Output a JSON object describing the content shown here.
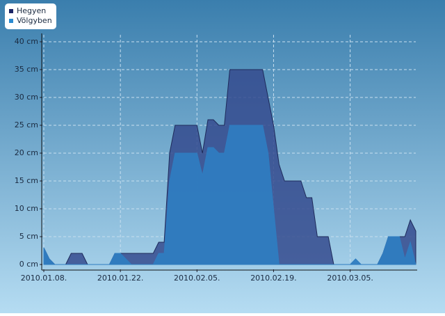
{
  "chart_data": {
    "type": "area",
    "x": [
      "2010-01-08",
      "2010-01-09",
      "2010-01-10",
      "2010-01-11",
      "2010-01-12",
      "2010-01-13",
      "2010-01-14",
      "2010-01-15",
      "2010-01-16",
      "2010-01-17",
      "2010-01-18",
      "2010-01-19",
      "2010-01-20",
      "2010-01-21",
      "2010-01-22",
      "2010-01-23",
      "2010-01-24",
      "2010-01-25",
      "2010-01-26",
      "2010-01-27",
      "2010-01-28",
      "2010-01-29",
      "2010-01-30",
      "2010-01-31",
      "2010-02-01",
      "2010-02-02",
      "2010-02-03",
      "2010-02-04",
      "2010-02-05",
      "2010-02-06",
      "2010-02-07",
      "2010-02-08",
      "2010-02-09",
      "2010-02-10",
      "2010-02-11",
      "2010-02-12",
      "2010-02-13",
      "2010-02-14",
      "2010-02-15",
      "2010-02-16",
      "2010-02-17",
      "2010-02-18",
      "2010-02-19",
      "2010-02-20",
      "2010-02-21",
      "2010-02-22",
      "2010-02-23",
      "2010-02-24",
      "2010-02-25",
      "2010-02-26",
      "2010-02-27",
      "2010-02-28",
      "2010-03-01",
      "2010-03-02",
      "2010-03-03",
      "2010-03-04",
      "2010-03-05",
      "2010-03-06",
      "2010-03-07",
      "2010-03-08",
      "2010-03-09",
      "2010-03-10",
      "2010-03-11",
      "2010-03-12",
      "2010-03-13",
      "2010-03-14",
      "2010-03-15",
      "2010-03-16",
      "2010-03-17"
    ],
    "series": [
      {
        "name": "Hegyen",
        "color": "#354b8e",
        "values": [
          3,
          1,
          0,
          0,
          0,
          2,
          2,
          2,
          0,
          0,
          0,
          0,
          0,
          2,
          2,
          2,
          2,
          2,
          2,
          2,
          2,
          4,
          4,
          20,
          25,
          25,
          25,
          25,
          25,
          20,
          26,
          26,
          25,
          25,
          35,
          35,
          35,
          35,
          35,
          35,
          35,
          30,
          25,
          18,
          15,
          15,
          15,
          15,
          12,
          12,
          5,
          5,
          5,
          0,
          0,
          0,
          0,
          0,
          0,
          0,
          0,
          0,
          2,
          5,
          5,
          5,
          5,
          8,
          6
        ]
      },
      {
        "name": "Völgyben",
        "color": "#2f7cc0",
        "values": [
          3,
          1,
          0,
          0,
          0,
          0,
          0,
          0,
          0,
          0,
          0,
          0,
          0,
          2,
          2,
          1,
          0,
          0,
          0,
          0,
          0,
          2,
          2,
          15,
          20,
          20,
          20,
          20,
          20,
          16,
          21,
          21,
          20,
          20,
          25,
          25,
          25,
          25,
          25,
          25,
          25,
          20,
          10,
          0,
          0,
          0,
          0,
          0,
          0,
          0,
          0,
          0,
          0,
          0,
          0,
          0,
          0,
          1,
          0,
          0,
          0,
          0,
          2,
          5,
          5,
          5,
          1,
          4,
          0
        ]
      }
    ],
    "xlim": [
      "2010-01-08",
      "2010-03-17"
    ],
    "xticks": [
      {
        "value": "2010-01-08",
        "label": "2010.01.08."
      },
      {
        "value": "2010-01-22",
        "label": "2010.01.22."
      },
      {
        "value": "2010-02-05",
        "label": "2010.02.05."
      },
      {
        "value": "2010-02-19",
        "label": "2010.02.19."
      },
      {
        "value": "2010-03-05",
        "label": "2010.03.05."
      }
    ],
    "ylim": [
      0,
      40
    ],
    "yticks": [
      {
        "value": 0,
        "label": "0 cm"
      },
      {
        "value": 5,
        "label": "5 cm"
      },
      {
        "value": 10,
        "label": "10 cm"
      },
      {
        "value": 15,
        "label": "15 cm"
      },
      {
        "value": 20,
        "label": "20 cm"
      },
      {
        "value": 25,
        "label": "25 cm"
      },
      {
        "value": 30,
        "label": "30 cm"
      },
      {
        "value": 35,
        "label": "35 cm"
      },
      {
        "value": 40,
        "label": "40 cm"
      }
    ],
    "grid": true,
    "legend": "top-left"
  }
}
